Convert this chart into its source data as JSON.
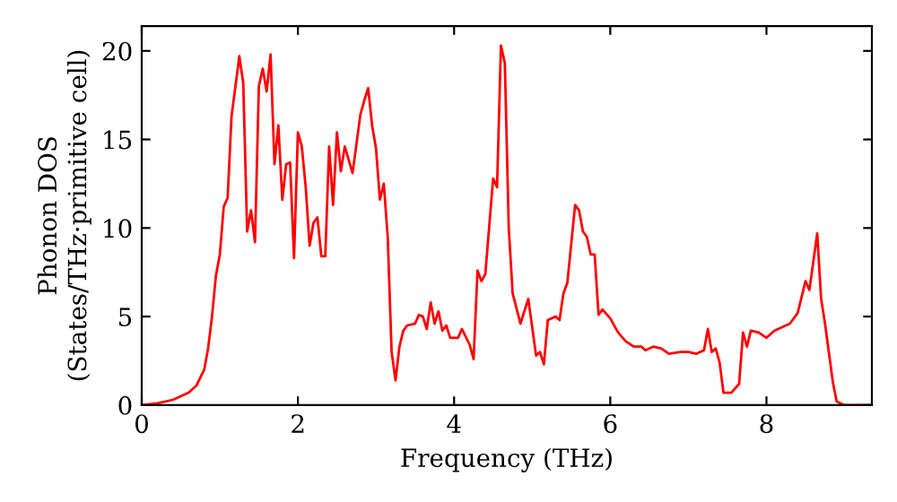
{
  "chart_data": {
    "type": "line",
    "xlabel": "Frequency (THz)",
    "ylabel": "Phonon DOS\n(States/THz·primitive cell)",
    "xlim": [
      0,
      9.35
    ],
    "ylim": [
      0,
      21.4
    ],
    "xticks": [
      0,
      2,
      4,
      6,
      8
    ],
    "yticks": [
      0,
      5,
      10,
      15,
      20
    ],
    "grid": false,
    "marker": "none",
    "line_style": "solid",
    "series": [
      {
        "color": "#ff0000",
        "x": [
          0,
          0.2,
          0.4,
          0.6,
          0.7,
          0.8,
          0.85,
          0.9,
          0.95,
          1.0,
          1.05,
          1.1,
          1.15,
          1.2,
          1.25,
          1.3,
          1.35,
          1.4,
          1.45,
          1.5,
          1.55,
          1.6,
          1.65,
          1.7,
          1.75,
          1.8,
          1.85,
          1.9,
          1.95,
          2.0,
          2.05,
          2.1,
          2.15,
          2.2,
          2.25,
          2.3,
          2.35,
          2.4,
          2.45,
          2.5,
          2.55,
          2.6,
          2.7,
          2.8,
          2.85,
          2.9,
          2.95,
          3.0,
          3.05,
          3.1,
          3.15,
          3.2,
          3.25,
          3.3,
          3.35,
          3.4,
          3.5,
          3.55,
          3.6,
          3.65,
          3.7,
          3.75,
          3.8,
          3.85,
          3.9,
          3.95,
          4.05,
          4.1,
          4.2,
          4.25,
          4.3,
          4.35,
          4.4,
          4.5,
          4.55,
          4.6,
          4.65,
          4.7,
          4.75,
          4.85,
          4.95,
          5.05,
          5.1,
          5.15,
          5.2,
          5.3,
          5.35,
          5.4,
          5.45,
          5.55,
          5.6,
          5.65,
          5.7,
          5.75,
          5.8,
          5.85,
          5.9,
          6.0,
          6.1,
          6.2,
          6.3,
          6.4,
          6.45,
          6.55,
          6.65,
          6.75,
          6.9,
          7.0,
          7.1,
          7.2,
          7.25,
          7.3,
          7.35,
          7.4,
          7.45,
          7.55,
          7.65,
          7.7,
          7.75,
          7.8,
          7.9,
          8.0,
          8.1,
          8.3,
          8.4,
          8.5,
          8.55,
          8.65,
          8.7,
          8.75,
          8.85,
          8.9,
          9.0,
          9.35
        ],
        "values": [
          0,
          0.1,
          0.3,
          0.7,
          1.1,
          2.0,
          3.2,
          5,
          7.3,
          8.5,
          11.2,
          11.7,
          16.3,
          18,
          19.7,
          18.2,
          9.8,
          11,
          9.2,
          18,
          19,
          17.7,
          19.8,
          13.6,
          15.8,
          11.6,
          13.6,
          13.7,
          8.3,
          15.4,
          14.6,
          12.3,
          9,
          10.3,
          10.6,
          8.4,
          8.4,
          14.6,
          11.3,
          15.4,
          13.2,
          14.6,
          13.1,
          16.4,
          17.2,
          17.9,
          15.8,
          14.5,
          11.6,
          12.5,
          9.5,
          3,
          1.4,
          3.3,
          4.2,
          4.5,
          4.6,
          5.1,
          5.0,
          4.3,
          5.8,
          4.6,
          5.3,
          4.2,
          4.5,
          3.8,
          3.8,
          4.3,
          3.4,
          2.6,
          7.6,
          7,
          7.4,
          12.8,
          12.3,
          20.3,
          19.3,
          10,
          6.3,
          4.6,
          6.0,
          2.8,
          3,
          2.3,
          4.8,
          5.0,
          4.8,
          6.3,
          6.9,
          11.3,
          11,
          9.8,
          9.5,
          8.5,
          8.5,
          5.1,
          5.4,
          4.9,
          4.1,
          3.6,
          3.3,
          3.3,
          3.1,
          3.3,
          3.2,
          2.9,
          3.0,
          3.0,
          2.9,
          3.1,
          4.3,
          3.0,
          3.2,
          2.4,
          0.7,
          0.7,
          1.2,
          4.1,
          3.3,
          4.2,
          4.1,
          3.8,
          4.2,
          4.6,
          5.2,
          7.0,
          6.5,
          9.7,
          6.0,
          4.6,
          1.3,
          0.2,
          0,
          0
        ]
      }
    ]
  }
}
